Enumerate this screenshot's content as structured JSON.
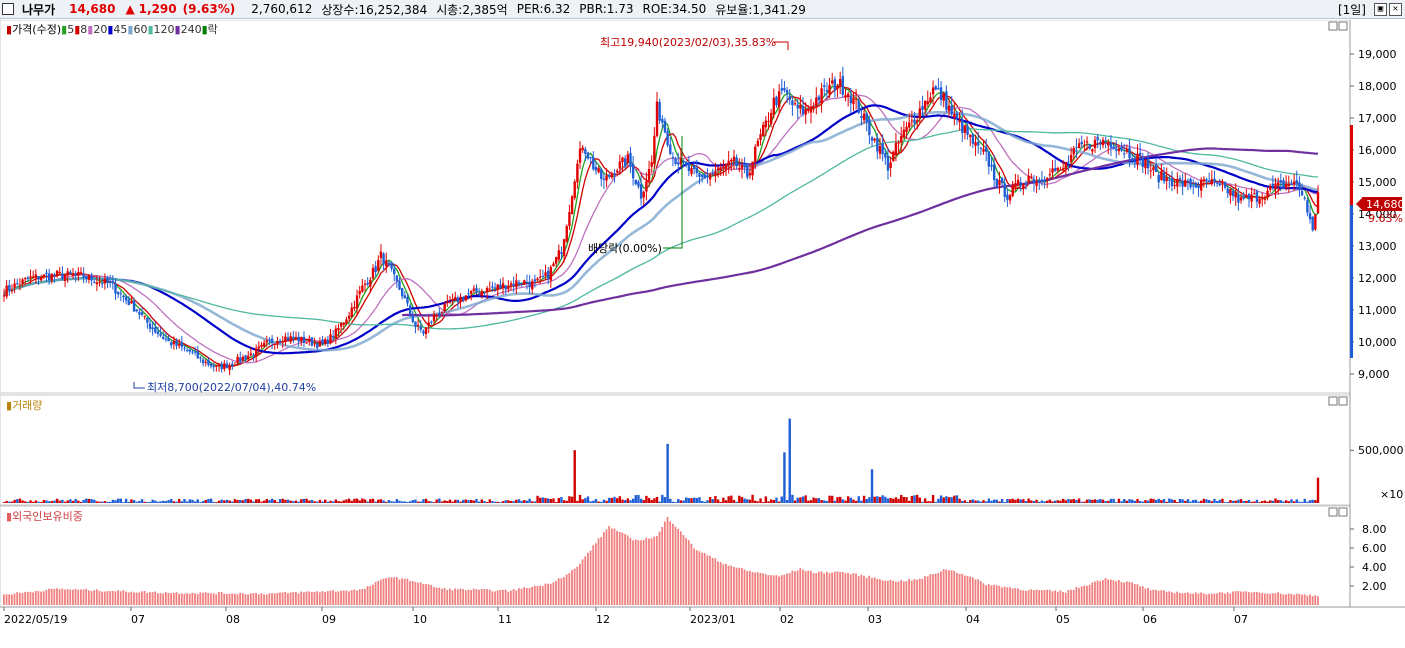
{
  "header": {
    "name": "나무가",
    "price": "14,680",
    "arrow": "▲",
    "change": "1,290",
    "change_pct": "(9.63%)",
    "volume": "2,760,612",
    "listed": "상장수:16,252,384",
    "mcap": "시총:2,385억",
    "per": "PER:6.32",
    "pbr": "PBR:1.73",
    "roe": "ROE:34.50",
    "reserve": "유보율:1,341.29",
    "period": "[1일]",
    "colors": {
      "up": "#e00000",
      "down": "#1f5fd6"
    }
  },
  "legend_price": [
    {
      "text": "가격(수정)",
      "color": "#c00000"
    },
    {
      "text": "5",
      "color": "#22a022"
    },
    {
      "text": "8",
      "color": "#d00000"
    },
    {
      "text": "20",
      "color": "#c070c0"
    },
    {
      "text": "45",
      "color": "#0000c8"
    },
    {
      "text": "60",
      "color": "#7aa6cf"
    },
    {
      "text": "120",
      "color": "#4fb8a0"
    },
    {
      "text": "240",
      "color": "#7030a0"
    },
    {
      "text": "락",
      "color": "#008000"
    }
  ],
  "legend_volume": "거래량",
  "legend_foreign": "외국인보유비중",
  "annotations": {
    "high": "최고19,940(2023/02/03),35.83%",
    "low": "최저8,700(2022/07/04),40.74%",
    "dividend": "배당락(0.00%)"
  },
  "current_price_label": "14,680",
  "current_pct_label": "9.63%",
  "x_ticks": [
    "2022/05/19",
    "07",
    "08",
    "09",
    "10",
    "11",
    "12",
    "2023/01",
    "02",
    "03",
    "04",
    "05",
    "06",
    "07"
  ],
  "volume_unit": "×10",
  "chart_data": [
    {
      "type": "candlestick",
      "x_start": "2022/05/19",
      "x_end": "2023/07",
      "ylim": [
        8500,
        20000
      ],
      "y_ticks": [
        "9,000",
        "10,000",
        "11,000",
        "12,000",
        "13,000",
        "14,000",
        "15,000",
        "16,000",
        "17,000",
        "18,000",
        "19,000"
      ],
      "close_path": [
        [
          0,
          11600
        ],
        [
          10,
          12000
        ],
        [
          20,
          12100
        ],
        [
          30,
          12050
        ],
        [
          40,
          11800
        ],
        [
          50,
          11000
        ],
        [
          55,
          10500
        ],
        [
          62,
          10000
        ],
        [
          70,
          9700
        ],
        [
          75,
          9400
        ],
        [
          80,
          9200
        ],
        [
          85,
          9300
        ],
        [
          90,
          9500
        ],
        [
          95,
          9700
        ],
        [
          100,
          10000
        ],
        [
          105,
          10150
        ],
        [
          110,
          10100
        ],
        [
          115,
          10000
        ],
        [
          120,
          9900
        ],
        [
          125,
          10300
        ],
        [
          130,
          10900
        ],
        [
          135,
          11700
        ],
        [
          140,
          12300
        ],
        [
          142,
          12700
        ],
        [
          145,
          12300
        ],
        [
          150,
          11500
        ],
        [
          155,
          10500
        ],
        [
          158,
          10300
        ],
        [
          162,
          10800
        ],
        [
          168,
          11200
        ],
        [
          175,
          11500
        ],
        [
          180,
          11600
        ],
        [
          185,
          11700
        ],
        [
          190,
          11800
        ],
        [
          195,
          11900
        ],
        [
          200,
          11800
        ],
        [
          205,
          12100
        ],
        [
          210,
          12900
        ],
        [
          213,
          14200
        ],
        [
          215,
          15200
        ],
        [
          218,
          16200
        ],
        [
          222,
          15500
        ],
        [
          226,
          15000
        ],
        [
          230,
          15400
        ],
        [
          235,
          15700
        ],
        [
          240,
          14600
        ],
        [
          244,
          15600
        ],
        [
          246,
          17300
        ],
        [
          248,
          16900
        ],
        [
          252,
          15800
        ],
        [
          256,
          15500
        ],
        [
          262,
          15100
        ],
        [
          268,
          15300
        ],
        [
          275,
          15600
        ],
        [
          280,
          15200
        ],
        [
          284,
          16200
        ],
        [
          287,
          16800
        ],
        [
          290,
          17500
        ],
        [
          294,
          17800
        ],
        [
          298,
          17300
        ],
        [
          302,
          17200
        ],
        [
          306,
          17600
        ],
        [
          310,
          17900
        ],
        [
          314,
          18100
        ],
        [
          318,
          17800
        ],
        [
          322,
          17300
        ],
        [
          326,
          16600
        ],
        [
          330,
          16000
        ],
        [
          333,
          15500
        ],
        [
          338,
          16400
        ],
        [
          343,
          17000
        ],
        [
          347,
          17500
        ],
        [
          350,
          17900
        ],
        [
          354,
          17600
        ],
        [
          358,
          17000
        ],
        [
          362,
          16600
        ],
        [
          366,
          16100
        ],
        [
          370,
          15800
        ],
        [
          374,
          15000
        ],
        [
          378,
          14600
        ],
        [
          382,
          14900
        ],
        [
          386,
          15200
        ],
        [
          390,
          15000
        ],
        [
          394,
          15400
        ],
        [
          398,
          15300
        ],
        [
          402,
          15800
        ],
        [
          406,
          16100
        ],
        [
          410,
          16200
        ],
        [
          414,
          16300
        ],
        [
          418,
          16200
        ],
        [
          422,
          16000
        ],
        [
          426,
          15800
        ],
        [
          430,
          15600
        ],
        [
          434,
          15200
        ],
        [
          438,
          15100
        ],
        [
          442,
          15000
        ],
        [
          446,
          14900
        ],
        [
          450,
          14900
        ],
        [
          454,
          15000
        ],
        [
          458,
          14800
        ],
        [
          462,
          14700
        ],
        [
          466,
          14400
        ],
        [
          470,
          14500
        ],
        [
          474,
          14600
        ],
        [
          478,
          14800
        ],
        [
          482,
          14900
        ],
        [
          486,
          15000
        ],
        [
          490,
          14500
        ],
        [
          493,
          13400
        ],
        [
          495,
          14680
        ]
      ],
      "ma_lines": [
        {
          "name": "5",
          "color": "#22a022"
        },
        {
          "name": "8",
          "color": "#d00000"
        },
        {
          "name": "20",
          "color": "#c070c0"
        },
        {
          "name": "45",
          "color": "#0000c8"
        },
        {
          "name": "60",
          "color": "#7aa6cf"
        },
        {
          "name": "120",
          "color": "#4fb8a0"
        },
        {
          "name": "240",
          "color": "#7030a0"
        }
      ]
    },
    {
      "type": "bar",
      "name": "거래량",
      "ylim": [
        0,
        900000
      ],
      "y_ticks": [
        "500,000"
      ],
      "spikes": [
        [
          215,
          500000
        ],
        [
          250,
          560000
        ],
        [
          294,
          480000
        ],
        [
          296,
          800000
        ],
        [
          327,
          320000
        ],
        [
          495,
          240000
        ]
      ]
    },
    {
      "type": "bar",
      "name": "외국인보유비중",
      "ylim": [
        0,
        10
      ],
      "y_ticks": [
        "2.00",
        "4.00",
        "6.00",
        "8.00"
      ],
      "level_path": [
        [
          0,
          1.1
        ],
        [
          20,
          1.7
        ],
        [
          40,
          1.5
        ],
        [
          60,
          1.3
        ],
        [
          100,
          1.2
        ],
        [
          135,
          1.6
        ],
        [
          145,
          3.0
        ],
        [
          155,
          2.5
        ],
        [
          165,
          1.7
        ],
        [
          190,
          1.5
        ],
        [
          205,
          2.2
        ],
        [
          212,
          3.2
        ],
        [
          216,
          4.0
        ],
        [
          222,
          6.2
        ],
        [
          228,
          8.3
        ],
        [
          233,
          7.5
        ],
        [
          238,
          6.8
        ],
        [
          246,
          7.2
        ],
        [
          250,
          9.2
        ],
        [
          255,
          7.8
        ],
        [
          260,
          6.0
        ],
        [
          270,
          4.5
        ],
        [
          280,
          3.6
        ],
        [
          292,
          3.0
        ],
        [
          300,
          3.8
        ],
        [
          306,
          3.4
        ],
        [
          315,
          3.5
        ],
        [
          325,
          3.0
        ],
        [
          335,
          2.5
        ],
        [
          345,
          2.7
        ],
        [
          355,
          3.8
        ],
        [
          362,
          3.2
        ],
        [
          370,
          2.2
        ],
        [
          385,
          1.6
        ],
        [
          400,
          1.4
        ],
        [
          415,
          2.8
        ],
        [
          425,
          2.3
        ],
        [
          433,
          1.5
        ],
        [
          450,
          1.2
        ],
        [
          470,
          1.4
        ],
        [
          495,
          1.0
        ]
      ]
    }
  ]
}
